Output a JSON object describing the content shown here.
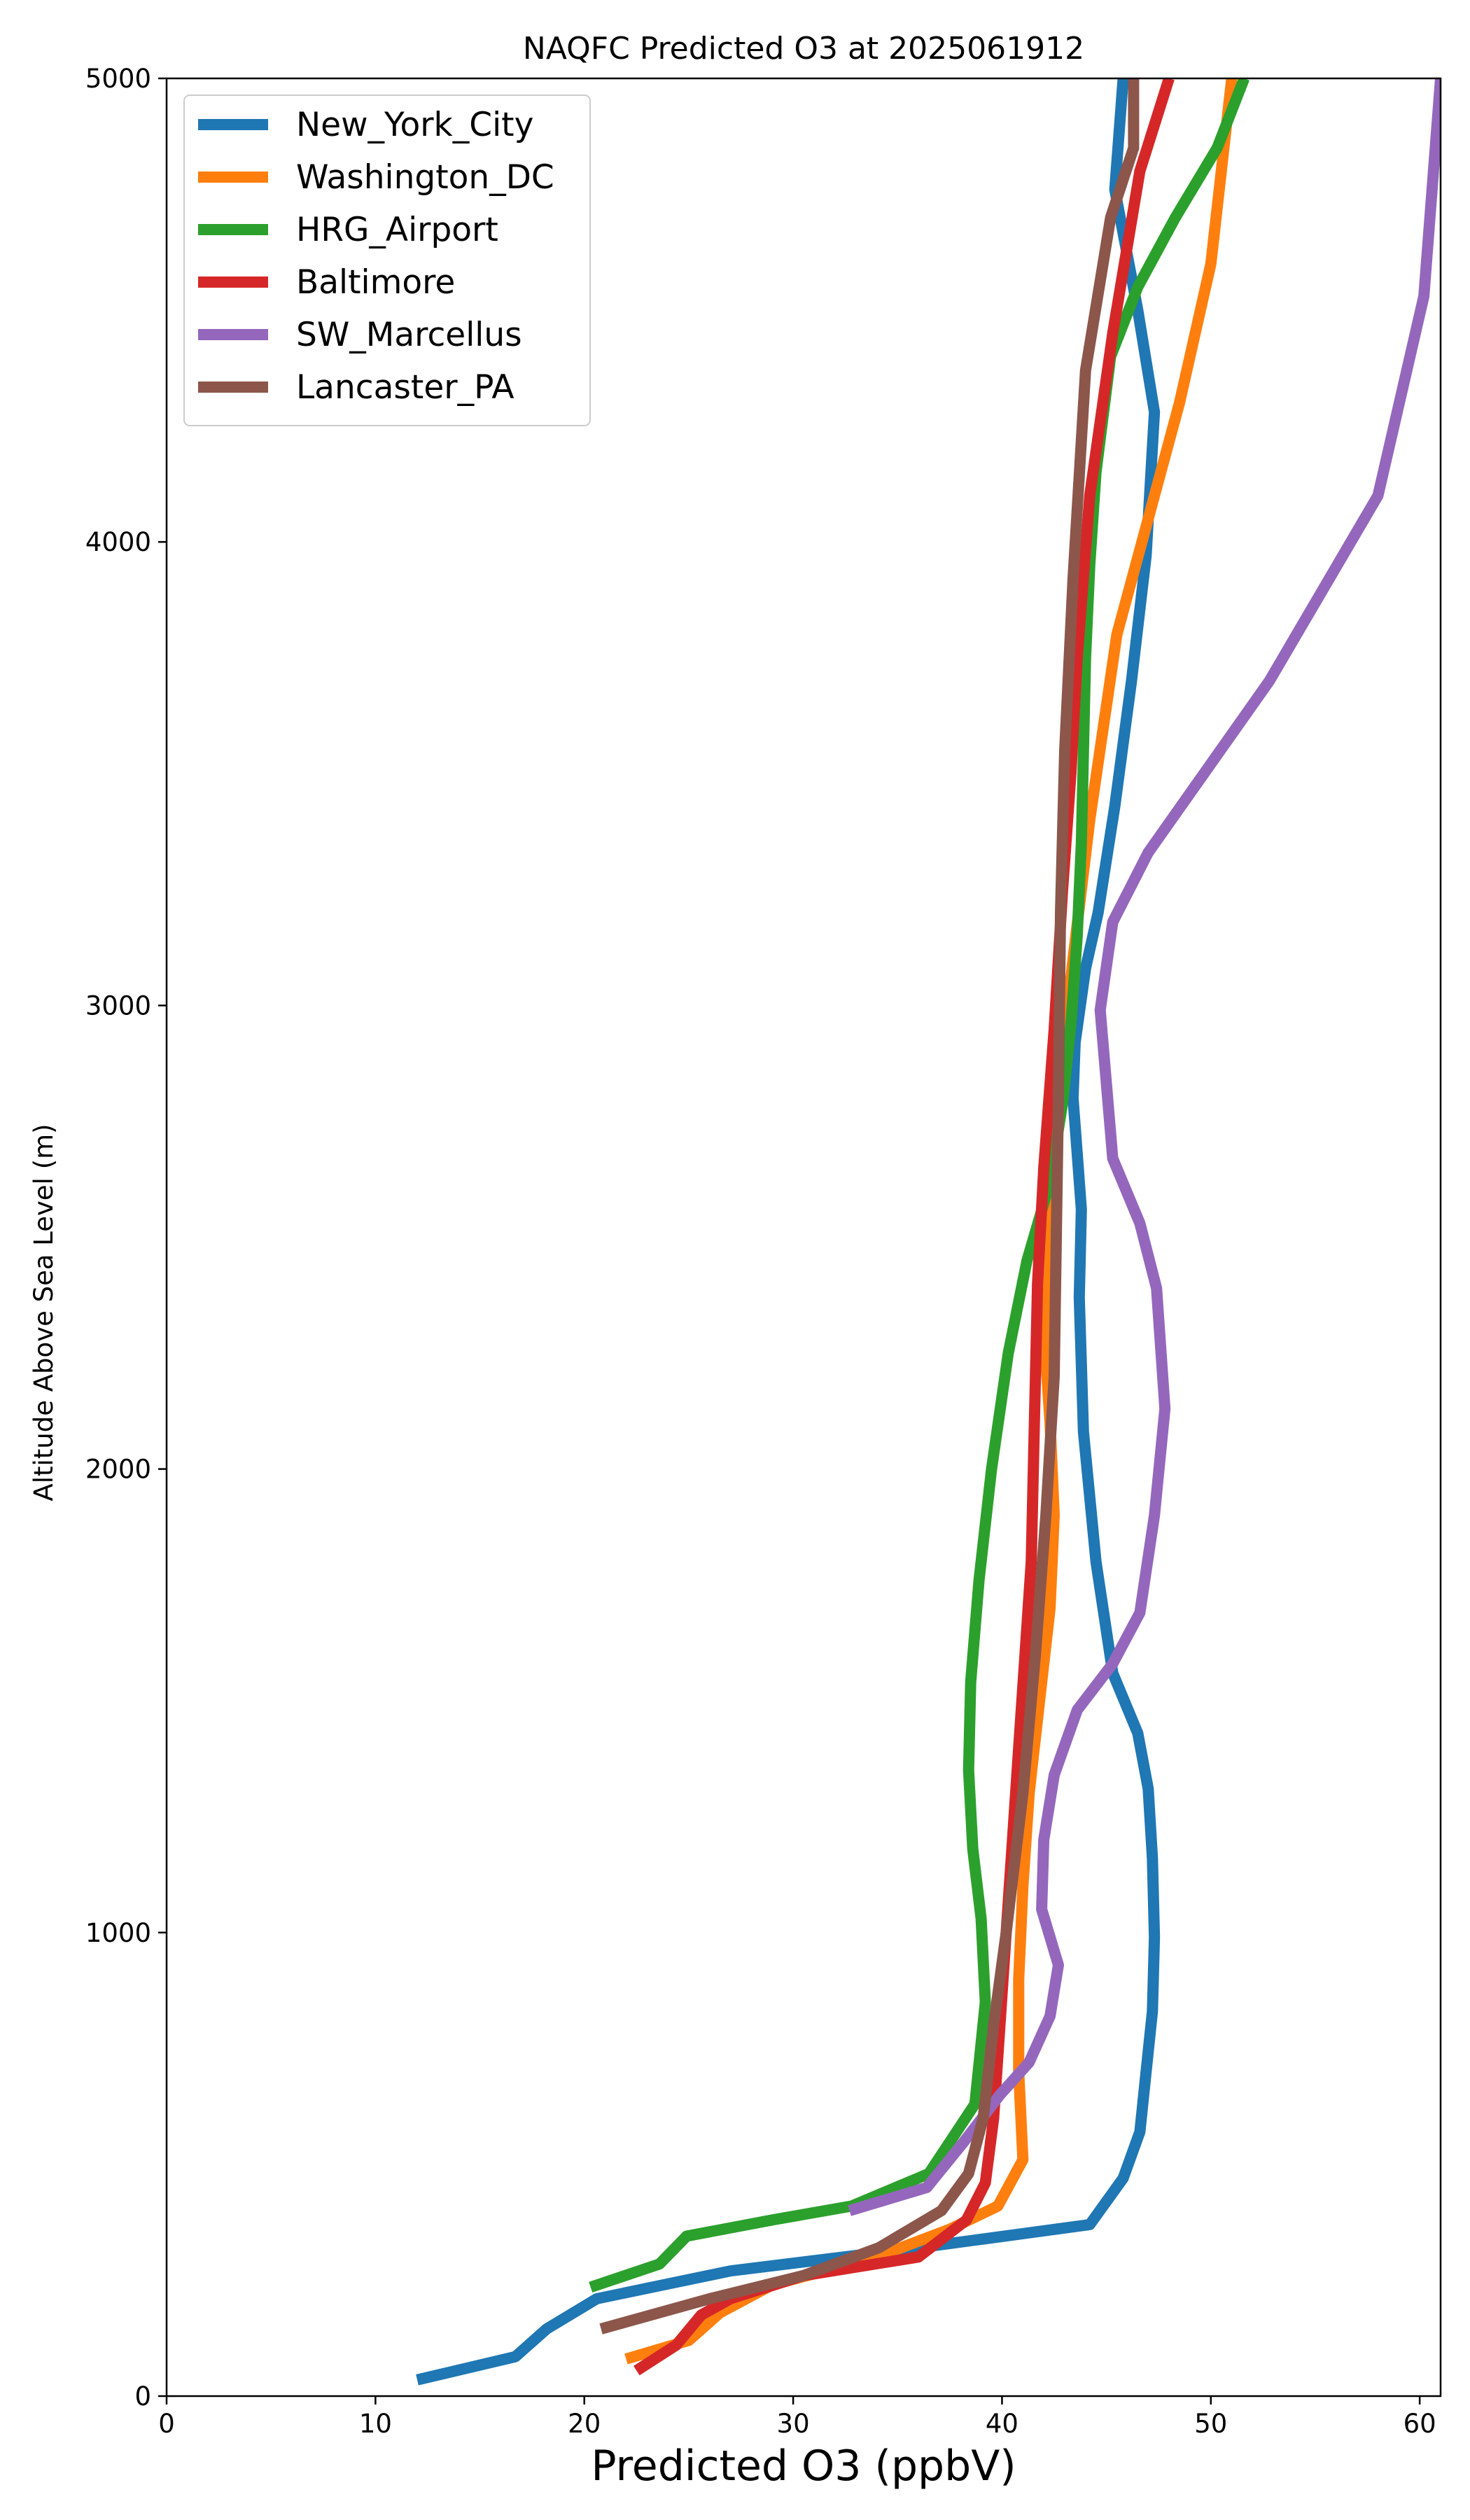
{
  "chart_data": {
    "type": "line",
    "title": "NAQFC Predicted O3 at 2025061912",
    "xlabel": "Predicted O3 (ppbV)",
    "ylabel": "Altitude Above Sea Level (m)",
    "xlim": [
      0,
      61
    ],
    "ylim": [
      0,
      5000
    ],
    "xticks": [
      0,
      10,
      20,
      30,
      40,
      50,
      60
    ],
    "yticks": [
      0,
      1000,
      2000,
      3000,
      4000,
      5000
    ],
    "grid": false,
    "legend_position": "top-left",
    "series": [
      {
        "name": "New_York_City",
        "color": "#1f77b4",
        "x": [
          12.0,
          16.7,
          18.2,
          20.6,
          27.0,
          36.0,
          44.2,
          45.8,
          46.6,
          46.9,
          47.2,
          47.3,
          47.2,
          47.0,
          46.5,
          45.3,
          44.5,
          43.9,
          43.7,
          43.8,
          43.6,
          43.4,
          43.5,
          44.0,
          44.6,
          45.4,
          46.2,
          46.9,
          47.3,
          46.5,
          45.4,
          45.8
        ],
        "y": [
          35,
          85,
          145,
          210,
          270,
          320,
          370,
          470,
          570,
          700,
          830,
          990,
          1160,
          1310,
          1430,
          1560,
          1800,
          2080,
          2370,
          2560,
          2680,
          2800,
          2920,
          3080,
          3200,
          3430,
          3700,
          3970,
          4280,
          4500,
          4760,
          5000
        ]
      },
      {
        "name": "Washington_DC",
        "color": "#ff7f0e",
        "x": [
          22.0,
          25.0,
          26.5,
          29.0,
          34.0,
          37.5,
          39.8,
          41.0,
          40.8,
          40.8,
          41.0,
          41.3,
          41.8,
          42.3,
          42.5,
          42.3,
          42.0,
          42.1,
          42.4,
          42.9,
          43.4,
          44.2,
          45.5,
          47.0,
          48.5,
          50.0,
          51.0
        ],
        "y": [
          80,
          120,
          180,
          240,
          300,
          360,
          410,
          510,
          700,
          900,
          1100,
          1300,
          1500,
          1700,
          1900,
          2100,
          2300,
          2500,
          2700,
          2900,
          3100,
          3400,
          3800,
          4050,
          4300,
          4600,
          5000
        ]
      },
      {
        "name": "HRG_Airport",
        "color": "#2ca02c",
        "x": [
          20.3,
          23.6,
          24.9,
          29.0,
          32.8,
          36.5,
          38.7,
          39.2,
          39.0,
          38.6,
          38.4,
          38.5,
          38.9,
          39.5,
          40.3,
          41.2,
          42.3,
          42.9,
          43.3,
          43.6,
          43.8,
          43.9,
          44.0,
          44.2,
          44.5,
          45.2,
          46.5,
          48.3,
          50.3,
          51.6
        ],
        "y": [
          235,
          285,
          345,
          380,
          410,
          480,
          630,
          850,
          1030,
          1180,
          1350,
          1540,
          1760,
          2000,
          2250,
          2450,
          2620,
          2790,
          2960,
          3150,
          3350,
          3550,
          3750,
          3950,
          4150,
          4400,
          4550,
          4700,
          4850,
          5000
        ]
      },
      {
        "name": "Baltimore",
        "color": "#d62728",
        "x": [
          22.5,
          24.4,
          25.6,
          27.0,
          30.5,
          36.0,
          38.3,
          39.2,
          39.6,
          39.9,
          40.2,
          40.5,
          40.8,
          41.1,
          41.4,
          41.5,
          41.6,
          41.7,
          42.0,
          42.5,
          42.9,
          43.3,
          43.6,
          44.2,
          45.3,
          46.6,
          48.0
        ],
        "y": [
          55,
          110,
          175,
          210,
          260,
          300,
          380,
          460,
          600,
          800,
          1000,
          1200,
          1400,
          1600,
          1800,
          2000,
          2200,
          2400,
          2650,
          2950,
          3250,
          3500,
          3750,
          4100,
          4450,
          4800,
          5000
        ]
      },
      {
        "name": "SW_Marcellus",
        "color": "#9467bd",
        "x": [
          32.7,
          36.4,
          38.2,
          39.9,
          41.3,
          42.3,
          42.7,
          41.9,
          42.0,
          42.5,
          43.6,
          45.3,
          46.6,
          47.3,
          47.8,
          47.4,
          46.6,
          45.3,
          44.7,
          45.3,
          47.0,
          52.8,
          58.0,
          60.2,
          61.0
        ],
        "y": [
          400,
          450,
          550,
          650,
          720,
          820,
          930,
          1050,
          1200,
          1340,
          1480,
          1580,
          1690,
          1900,
          2130,
          2390,
          2530,
          2670,
          2990,
          3180,
          3330,
          3700,
          4100,
          4530,
          5000
        ]
      },
      {
        "name": "Lancaster_PA",
        "color": "#8c564b",
        "x": [
          20.8,
          26.0,
          30.5,
          34.1,
          37.1,
          38.4,
          39.1,
          39.6,
          40.2,
          41.0,
          41.6,
          42.1,
          42.5,
          42.6,
          42.7,
          42.8,
          43.0,
          43.4,
          44.0,
          45.2,
          46.3,
          46.3
        ],
        "y": [
          145,
          210,
          260,
          320,
          400,
          480,
          600,
          800,
          1000,
          1300,
          1600,
          1900,
          2200,
          2500,
          2800,
          3200,
          3550,
          3920,
          4370,
          4700,
          4850,
          5000
        ]
      }
    ]
  }
}
